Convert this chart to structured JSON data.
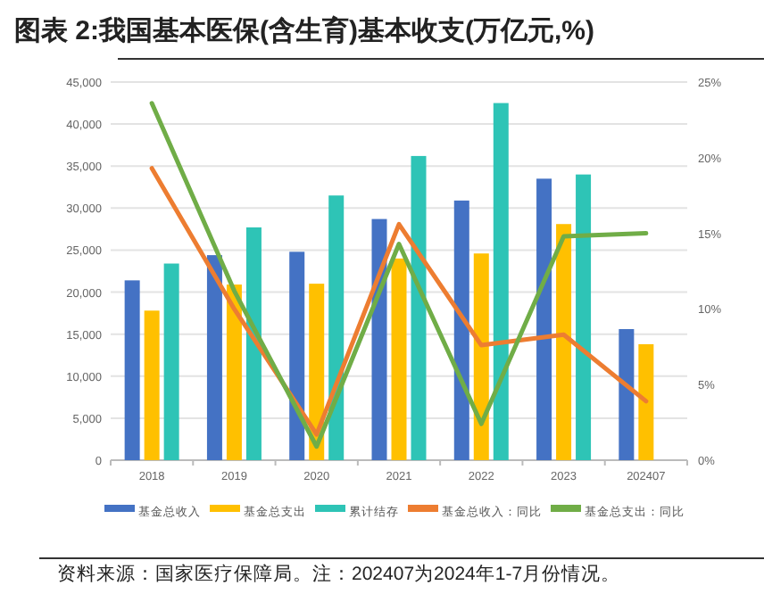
{
  "chart_data": {
    "type": "bar",
    "title": "图表 2:我国基本医保(含生育)基本收支(万亿元,%)",
    "categories": [
      "2018",
      "2019",
      "2020",
      "2021",
      "2022",
      "2023",
      "202407"
    ],
    "series": [
      {
        "name": "基金总收入",
        "color": "#4472c4",
        "values": [
          21400,
          24400,
          24800,
          28700,
          30900,
          33500,
          15600
        ]
      },
      {
        "name": "基金总支出",
        "color": "#ffc000",
        "values": [
          17800,
          20900,
          21000,
          24000,
          24600,
          28100,
          13800
        ]
      },
      {
        "name": "累计结存",
        "color": "#2ec4b6",
        "values": [
          23400,
          27700,
          31500,
          36200,
          42500,
          34000,
          null
        ]
      },
      {
        "name": "基金总收入：同比",
        "type": "line",
        "axis": "y2",
        "color": "#ed7d31",
        "values": [
          19.3,
          10.0,
          1.7,
          15.6,
          7.6,
          8.3,
          3.9
        ]
      },
      {
        "name": "基金总支出：同比",
        "type": "line",
        "axis": "y2",
        "color": "#70ad47",
        "values": [
          23.6,
          11.2,
          0.9,
          14.3,
          2.4,
          14.8,
          15.0
        ]
      }
    ],
    "ylim": [
      0,
      45000
    ],
    "yticks": [
      {
        "value": 0,
        "label": "0"
      },
      {
        "value": 5000,
        "label": "5,000"
      },
      {
        "value": 10000,
        "label": "10,000"
      },
      {
        "value": 15000,
        "label": "15,000"
      },
      {
        "value": 20000,
        "label": "20,000"
      },
      {
        "value": 25000,
        "label": "25,000"
      },
      {
        "value": 30000,
        "label": "30,000"
      },
      {
        "value": 35000,
        "label": "35,000"
      },
      {
        "value": 40000,
        "label": "40,000"
      },
      {
        "value": 45000,
        "label": "45,000"
      }
    ],
    "y2lim": [
      0,
      25
    ],
    "y2ticks": [
      {
        "value": 0,
        "label": "0%"
      },
      {
        "value": 5,
        "label": "5%"
      },
      {
        "value": 10,
        "label": "10%"
      },
      {
        "value": 15,
        "label": "15%"
      },
      {
        "value": 20,
        "label": "20%"
      },
      {
        "value": 25,
        "label": "25%"
      }
    ],
    "grid": "y",
    "legend": "bottom",
    "annotations": [
      "资料来源：国家医疗保障局。注：202407为2024年1-7月份情况。"
    ]
  }
}
